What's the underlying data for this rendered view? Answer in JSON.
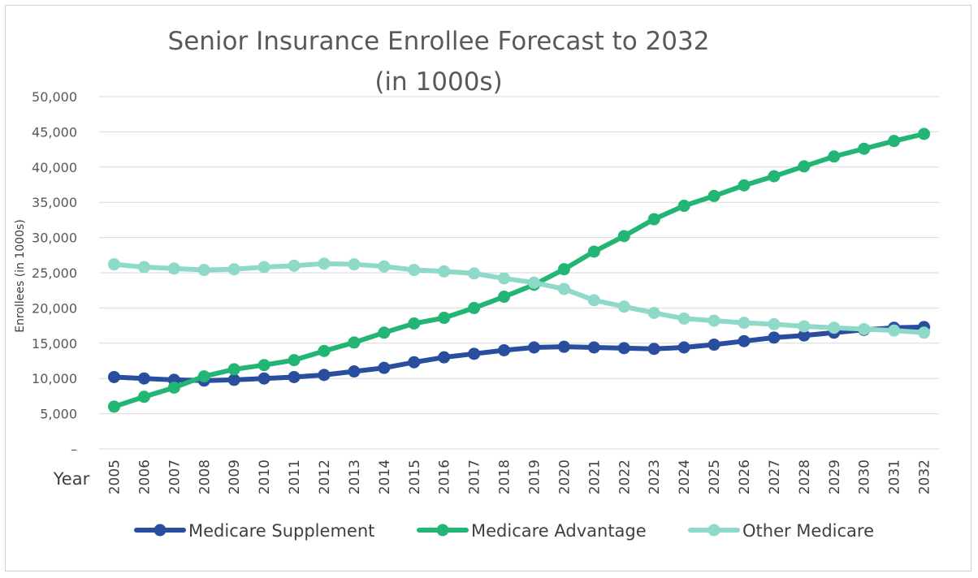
{
  "chart_data": {
    "type": "line",
    "title": "Senior Insurance Enrollee Forecast to 2032",
    "subtitle": "(in 1000s)",
    "xlabel": "Year",
    "ylabel": "Enrollees (in 1000s)",
    "ylim": [
      0,
      50000
    ],
    "yticks": [
      0,
      5000,
      10000,
      15000,
      20000,
      25000,
      30000,
      35000,
      40000,
      45000,
      50000
    ],
    "ytick_labels": [
      "–",
      "5,000",
      "10,000",
      "15,000",
      "20,000",
      "25,000",
      "30,000",
      "35,000",
      "40,000",
      "45,000",
      "50,000"
    ],
    "grid": true,
    "legend_position": "bottom",
    "categories": [
      "2005",
      "2006",
      "2007",
      "2008",
      "2009",
      "2010",
      "2011",
      "2012",
      "2013",
      "2014",
      "2015",
      "2016",
      "2017",
      "2018",
      "2019",
      "2020",
      "2021",
      "2022",
      "2023",
      "2024",
      "2025",
      "2026",
      "2027",
      "2028",
      "2029",
      "2030",
      "2031",
      "2032"
    ],
    "series": [
      {
        "name": "Medicare Supplement",
        "color": "#2a4e9e",
        "values": [
          10200,
          10000,
          9800,
          9700,
          9800,
          10000,
          10200,
          10500,
          11000,
          11500,
          12300,
          13000,
          13500,
          14000,
          14400,
          14500,
          14400,
          14300,
          14200,
          14400,
          14800,
          15300,
          15800,
          16100,
          16500,
          16900,
          17200,
          17300
        ]
      },
      {
        "name": "Medicare Advantage",
        "color": "#22b573",
        "values": [
          6000,
          7400,
          8700,
          10300,
          11300,
          11900,
          12600,
          13900,
          15100,
          16500,
          17800,
          18600,
          20000,
          21600,
          23300,
          25500,
          28000,
          30200,
          32600,
          34500,
          35900,
          37400,
          38700,
          40100,
          41500,
          42600,
          43700,
          44700
        ]
      },
      {
        "name": "Other Medicare",
        "color": "#8fd9c8",
        "values": [
          26200,
          25800,
          25600,
          25400,
          25500,
          25800,
          26000,
          26300,
          26200,
          25900,
          25400,
          25200,
          24900,
          24200,
          23600,
          22700,
          21100,
          20200,
          19300,
          18500,
          18200,
          17900,
          17700,
          17400,
          17200,
          17000,
          16800,
          16500
        ]
      }
    ]
  }
}
